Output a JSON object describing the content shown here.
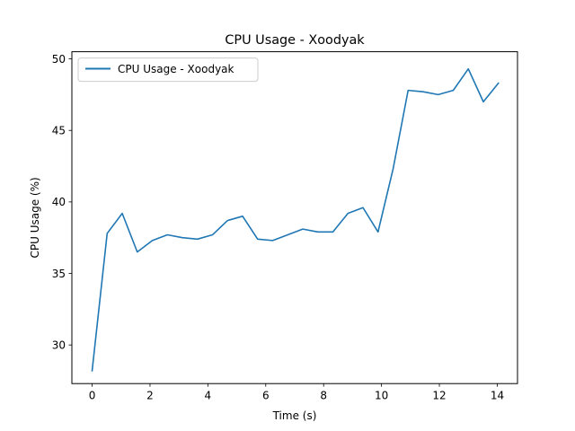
{
  "chart_data": {
    "type": "line",
    "title": "CPU Usage - Xoodyak",
    "xlabel": "Time (s)",
    "ylabel": "CPU Usage (%)",
    "xlim": [
      -0.7,
      14.7
    ],
    "ylim": [
      27.3,
      50.5
    ],
    "xticks": [
      0,
      2,
      4,
      6,
      8,
      10,
      12,
      14
    ],
    "yticks": [
      30,
      35,
      40,
      45,
      50
    ],
    "grid": false,
    "legend_position": "upper-left",
    "series": [
      {
        "name": "CPU Usage - Xoodyak",
        "color": "#1f77b4",
        "x": [
          0.0,
          0.52,
          1.04,
          1.56,
          2.08,
          2.6,
          3.12,
          3.64,
          4.16,
          4.68,
          5.2,
          5.72,
          6.24,
          6.76,
          7.28,
          7.8,
          8.32,
          8.84,
          9.36,
          9.88,
          10.4,
          10.92,
          11.44,
          11.96,
          12.48,
          13.0,
          13.52,
          14.04
        ],
        "y": [
          28.2,
          37.8,
          39.2,
          36.5,
          37.3,
          37.7,
          37.5,
          37.4,
          37.7,
          38.7,
          39.0,
          37.4,
          37.3,
          37.7,
          38.1,
          37.9,
          37.9,
          39.2,
          39.6,
          37.9,
          42.3,
          47.8,
          47.7,
          47.5,
          47.8,
          49.3,
          47.0,
          48.3
        ]
      }
    ]
  }
}
